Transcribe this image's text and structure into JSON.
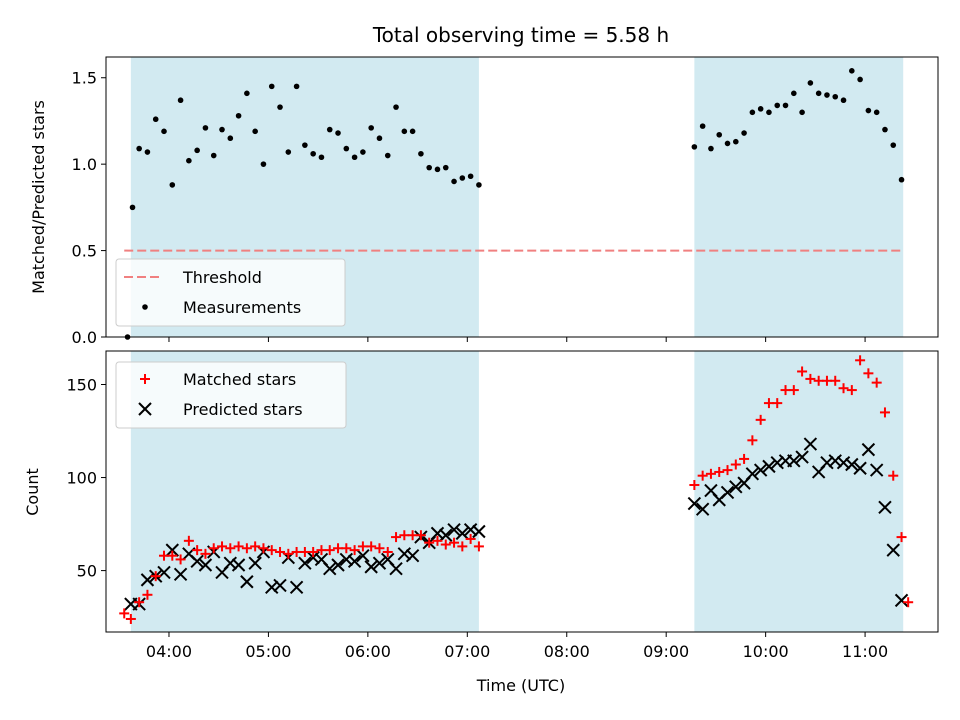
{
  "figure": {
    "title": "Total observing time = 5.58 h",
    "xlabel": "Time (UTC)"
  },
  "chart_data": [
    {
      "type": "scatter",
      "panel": "top",
      "ylabel": "Matched/Predicted stars",
      "xlim": [
        "03:22",
        "11:44"
      ],
      "ylim": [
        0,
        1.62
      ],
      "yticks": [
        "0.0",
        "0.5",
        "1.0",
        "1.5"
      ],
      "shaded_spans": [
        [
          "03:37",
          "07:07"
        ],
        [
          "09:17",
          "11:23"
        ]
      ],
      "threshold": {
        "name": "Threshold",
        "value": 0.5,
        "x_range": [
          "03:33",
          "11:23"
        ],
        "color": "#f08080",
        "style": "dashed"
      },
      "series": [
        {
          "name": "Measurements",
          "marker": "dot",
          "color": "#000000",
          "points": [
            [
              "03:35",
              0.0
            ],
            [
              "03:38",
              0.75
            ],
            [
              "03:42",
              1.09
            ],
            [
              "03:47",
              1.07
            ],
            [
              "03:52",
              1.26
            ],
            [
              "03:57",
              1.19
            ],
            [
              "04:02",
              0.88
            ],
            [
              "04:07",
              1.37
            ],
            [
              "04:12",
              1.02
            ],
            [
              "04:17",
              1.08
            ],
            [
              "04:22",
              1.21
            ],
            [
              "04:27",
              1.05
            ],
            [
              "04:32",
              1.2
            ],
            [
              "04:37",
              1.15
            ],
            [
              "04:42",
              1.28
            ],
            [
              "04:47",
              1.41
            ],
            [
              "04:52",
              1.19
            ],
            [
              "04:57",
              1.0
            ],
            [
              "05:02",
              1.45
            ],
            [
              "05:07",
              1.33
            ],
            [
              "05:12",
              1.07
            ],
            [
              "05:17",
              1.45
            ],
            [
              "05:22",
              1.11
            ],
            [
              "05:27",
              1.06
            ],
            [
              "05:32",
              1.04
            ],
            [
              "05:37",
              1.2
            ],
            [
              "05:42",
              1.18
            ],
            [
              "05:47",
              1.09
            ],
            [
              "05:52",
              1.04
            ],
            [
              "05:57",
              1.07
            ],
            [
              "06:02",
              1.21
            ],
            [
              "06:07",
              1.15
            ],
            [
              "06:12",
              1.05
            ],
            [
              "06:17",
              1.33
            ],
            [
              "06:22",
              1.19
            ],
            [
              "06:27",
              1.19
            ],
            [
              "06:32",
              1.06
            ],
            [
              "06:37",
              0.98
            ],
            [
              "06:42",
              0.97
            ],
            [
              "06:47",
              0.98
            ],
            [
              "06:52",
              0.9
            ],
            [
              "06:57",
              0.92
            ],
            [
              "07:02",
              0.93
            ],
            [
              "07:07",
              0.88
            ],
            [
              "09:17",
              1.1
            ],
            [
              "09:22",
              1.22
            ],
            [
              "09:27",
              1.09
            ],
            [
              "09:32",
              1.17
            ],
            [
              "09:37",
              1.12
            ],
            [
              "09:42",
              1.13
            ],
            [
              "09:47",
              1.18
            ],
            [
              "09:52",
              1.3
            ],
            [
              "09:57",
              1.32
            ],
            [
              "10:02",
              1.3
            ],
            [
              "10:07",
              1.34
            ],
            [
              "10:12",
              1.34
            ],
            [
              "10:17",
              1.41
            ],
            [
              "10:22",
              1.3
            ],
            [
              "10:27",
              1.47
            ],
            [
              "10:32",
              1.41
            ],
            [
              "10:37",
              1.4
            ],
            [
              "10:42",
              1.39
            ],
            [
              "10:47",
              1.37
            ],
            [
              "10:52",
              1.54
            ],
            [
              "10:57",
              1.49
            ],
            [
              "11:02",
              1.31
            ],
            [
              "11:07",
              1.3
            ],
            [
              "11:12",
              1.2
            ],
            [
              "11:17",
              1.11
            ],
            [
              "11:22",
              0.91
            ]
          ]
        }
      ],
      "legend": {
        "placement": "lower-left"
      }
    },
    {
      "type": "scatter",
      "panel": "bottom",
      "ylabel": "Count",
      "xlim": [
        "03:22",
        "11:44"
      ],
      "ylim": [
        17,
        168
      ],
      "yticks": [
        "50",
        "100",
        "150"
      ],
      "xticks": [
        "04:00",
        "05:00",
        "06:00",
        "07:00",
        "08:00",
        "09:00",
        "10:00",
        "11:00"
      ],
      "shaded_spans": [
        [
          "03:37",
          "07:07"
        ],
        [
          "09:17",
          "11:23"
        ]
      ],
      "series": [
        {
          "name": "Matched stars",
          "marker": "plus",
          "color": "#ff0000",
          "points": [
            [
              "03:33",
              27
            ],
            [
              "03:37",
              24
            ],
            [
              "03:42",
              33
            ],
            [
              "03:47",
              37
            ],
            [
              "03:52",
              47
            ],
            [
              "03:57",
              58
            ],
            [
              "04:02",
              58
            ],
            [
              "04:07",
              56
            ],
            [
              "04:12",
              66
            ],
            [
              "04:17",
              61
            ],
            [
              "04:22",
              59
            ],
            [
              "04:27",
              62
            ],
            [
              "04:32",
              63
            ],
            [
              "04:37",
              62
            ],
            [
              "04:42",
              63
            ],
            [
              "04:47",
              62
            ],
            [
              "04:52",
              63
            ],
            [
              "04:57",
              62
            ],
            [
              "05:02",
              61
            ],
            [
              "05:07",
              60
            ],
            [
              "05:12",
              59
            ],
            [
              "05:17",
              60
            ],
            [
              "05:22",
              60
            ],
            [
              "05:27",
              60
            ],
            [
              "05:32",
              61
            ],
            [
              "05:37",
              61
            ],
            [
              "05:42",
              62
            ],
            [
              "05:47",
              62
            ],
            [
              "05:52",
              61
            ],
            [
              "05:57",
              63
            ],
            [
              "06:02",
              63
            ],
            [
              "06:07",
              62
            ],
            [
              "06:12",
              60
            ],
            [
              "06:17",
              68
            ],
            [
              "06:22",
              69
            ],
            [
              "06:27",
              69
            ],
            [
              "06:32",
              69
            ],
            [
              "06:37",
              65
            ],
            [
              "06:42",
              66
            ],
            [
              "06:47",
              64
            ],
            [
              "06:52",
              65
            ],
            [
              "06:57",
              63
            ],
            [
              "07:02",
              67
            ],
            [
              "07:07",
              63
            ],
            [
              "09:17",
              96
            ],
            [
              "09:22",
              101
            ],
            [
              "09:27",
              102
            ],
            [
              "09:32",
              103
            ],
            [
              "09:37",
              104
            ],
            [
              "09:42",
              107
            ],
            [
              "09:47",
              110
            ],
            [
              "09:52",
              120
            ],
            [
              "09:57",
              131
            ],
            [
              "10:02",
              140
            ],
            [
              "10:07",
              140
            ],
            [
              "10:12",
              147
            ],
            [
              "10:17",
              147
            ],
            [
              "10:22",
              157
            ],
            [
              "10:27",
              153
            ],
            [
              "10:32",
              152
            ],
            [
              "10:37",
              152
            ],
            [
              "10:42",
              152
            ],
            [
              "10:47",
              148
            ],
            [
              "10:52",
              147
            ],
            [
              "10:57",
              163
            ],
            [
              "11:02",
              156
            ],
            [
              "11:07",
              151
            ],
            [
              "11:12",
              135
            ],
            [
              "11:17",
              101
            ],
            [
              "11:22",
              68
            ],
            [
              "11:26",
              33
            ]
          ]
        },
        {
          "name": "Predicted stars",
          "marker": "x",
          "color": "#000000",
          "points": [
            [
              "03:37",
              32
            ],
            [
              "03:42",
              32
            ],
            [
              "03:47",
              45
            ],
            [
              "03:52",
              47
            ],
            [
              "03:57",
              49
            ],
            [
              "04:02",
              61
            ],
            [
              "04:07",
              48
            ],
            [
              "04:12",
              59
            ],
            [
              "04:17",
              55
            ],
            [
              "04:22",
              53
            ],
            [
              "04:27",
              60
            ],
            [
              "04:32",
              49
            ],
            [
              "04:37",
              54
            ],
            [
              "04:42",
              53
            ],
            [
              "04:47",
              44
            ],
            [
              "04:52",
              54
            ],
            [
              "04:57",
              60
            ],
            [
              "05:02",
              41
            ],
            [
              "05:07",
              42
            ],
            [
              "05:12",
              57
            ],
            [
              "05:17",
              41
            ],
            [
              "05:22",
              54
            ],
            [
              "05:27",
              57
            ],
            [
              "05:32",
              56
            ],
            [
              "05:37",
              51
            ],
            [
              "05:42",
              53
            ],
            [
              "05:47",
              56
            ],
            [
              "05:52",
              55
            ],
            [
              "05:57",
              58
            ],
            [
              "06:02",
              52
            ],
            [
              "06:07",
              54
            ],
            [
              "06:12",
              56
            ],
            [
              "06:17",
              51
            ],
            [
              "06:22",
              59
            ],
            [
              "06:27",
              58
            ],
            [
              "06:32",
              68
            ],
            [
              "06:37",
              65
            ],
            [
              "06:42",
              70
            ],
            [
              "06:47",
              69
            ],
            [
              "06:52",
              72
            ],
            [
              "06:57",
              70
            ],
            [
              "07:02",
              72
            ],
            [
              "07:07",
              71
            ],
            [
              "09:17",
              86
            ],
            [
              "09:22",
              83
            ],
            [
              "09:27",
              93
            ],
            [
              "09:32",
              88
            ],
            [
              "09:37",
              92
            ],
            [
              "09:42",
              95
            ],
            [
              "09:47",
              97
            ],
            [
              "09:52",
              102
            ],
            [
              "09:57",
              104
            ],
            [
              "10:02",
              106
            ],
            [
              "10:07",
              108
            ],
            [
              "10:12",
              109
            ],
            [
              "10:17",
              109
            ],
            [
              "10:22",
              111
            ],
            [
              "10:27",
              118
            ],
            [
              "10:32",
              103
            ],
            [
              "10:37",
              108
            ],
            [
              "10:42",
              109
            ],
            [
              "10:47",
              108
            ],
            [
              "10:52",
              107
            ],
            [
              "10:57",
              105
            ],
            [
              "11:02",
              115
            ],
            [
              "11:07",
              104
            ],
            [
              "11:12",
              84
            ],
            [
              "11:17",
              61
            ],
            [
              "11:22",
              34
            ]
          ]
        }
      ],
      "legend": {
        "placement": "top-left"
      }
    }
  ],
  "colors": {
    "shade": "#add8e6",
    "matched": "#ff0000",
    "predicted": "#000000",
    "threshold": "#f08080"
  }
}
